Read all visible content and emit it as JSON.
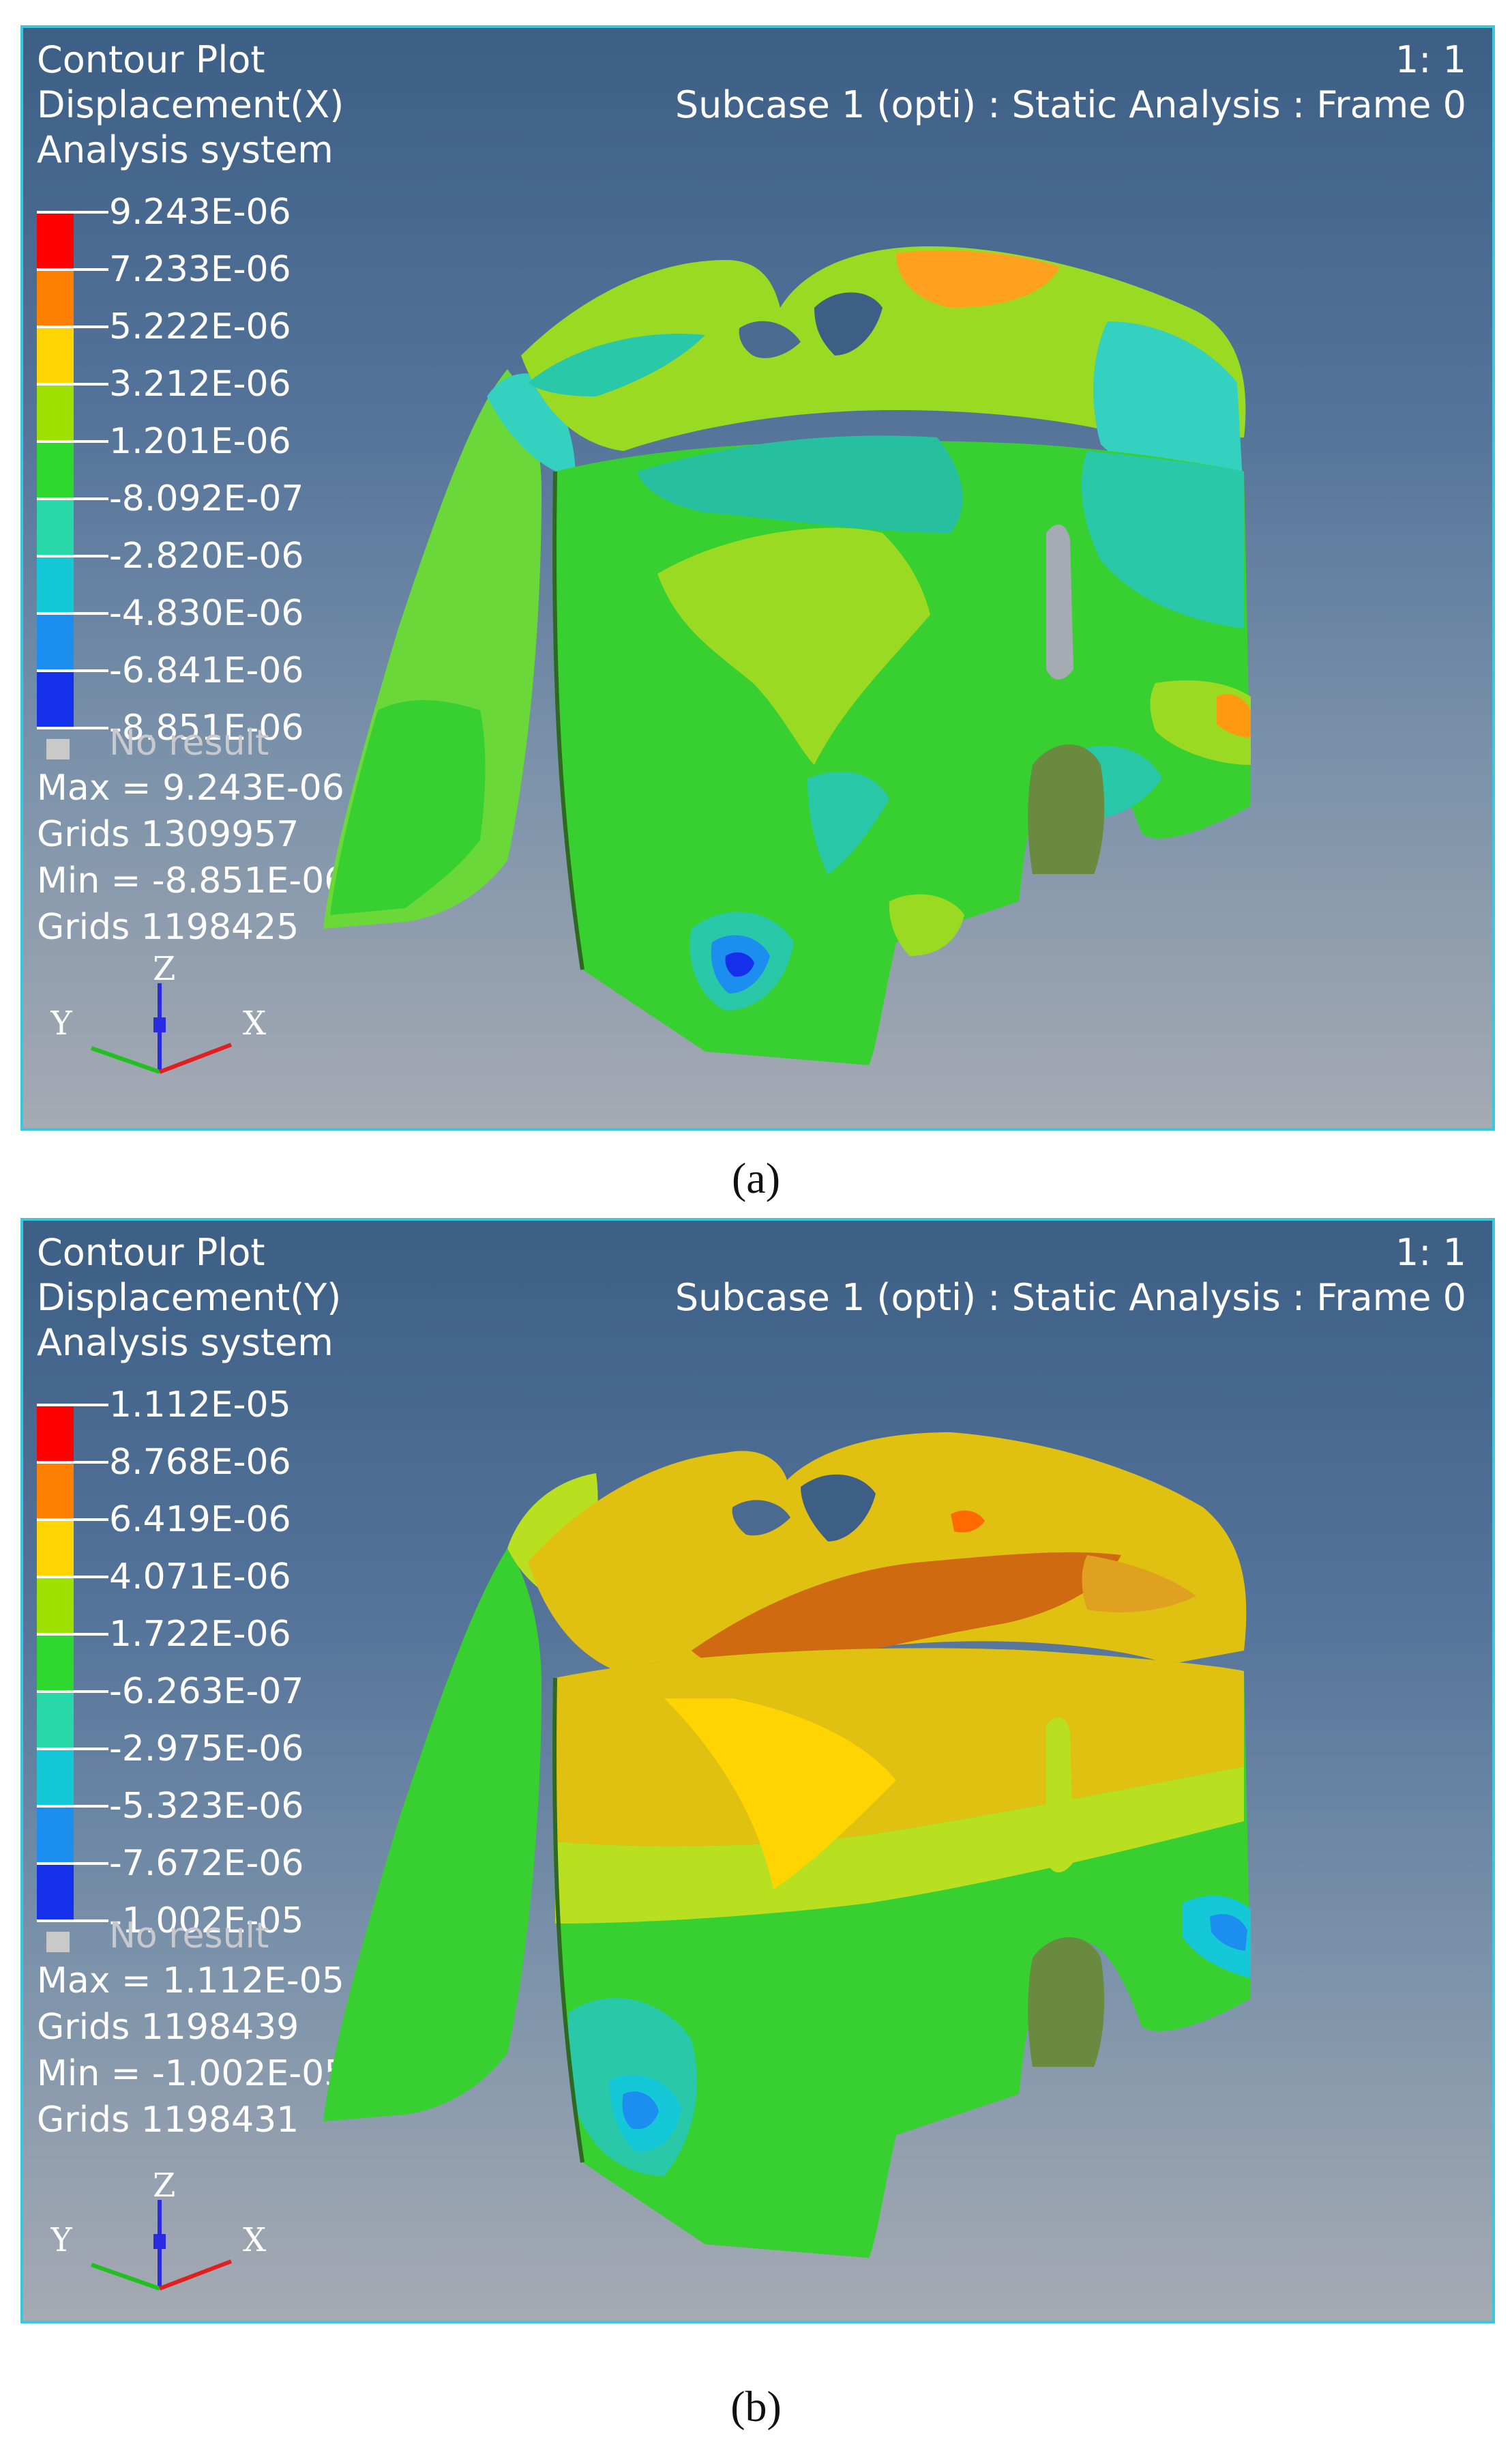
{
  "panels": [
    {
      "caption": "(a)",
      "title_lines": [
        "Contour Plot",
        "Displacement(X)",
        "Analysis system"
      ],
      "scale": "1: 1",
      "subcase": "Subcase 1 (opti) : Static Analysis : Frame 0",
      "legend": {
        "values": [
          "9.243E-06",
          "7.233E-06",
          "5.222E-06",
          "3.212E-06",
          "1.201E-06",
          "-8.092E-07",
          "-2.820E-06",
          "-4.830E-06",
          "-6.841E-06",
          "-8.851E-06"
        ],
        "colors": [
          "#ff0000",
          "#ff7f00",
          "#ffd400",
          "#9ee000",
          "#2fd82f",
          "#28d8a8",
          "#14c8d8",
          "#1c8ef0",
          "#1430ea",
          "#0000a0"
        ],
        "no_result": "No result"
      },
      "stats": [
        "Max = 9.243E-06",
        "Grids 1309957",
        "Min = -8.851E-06",
        "Grids 1198425"
      ],
      "axes": {
        "z": "Z",
        "y": "Y",
        "x": "X"
      }
    },
    {
      "caption": "(b)",
      "title_lines": [
        "Contour Plot",
        "Displacement(Y)",
        "Analysis system"
      ],
      "scale": "1: 1",
      "subcase": "Subcase 1 (opti) : Static Analysis : Frame 0",
      "legend": {
        "values": [
          "1.112E-05",
          "8.768E-06",
          "6.419E-06",
          "4.071E-06",
          "1.722E-06",
          "-6.263E-07",
          "-2.975E-06",
          "-5.323E-06",
          "-7.672E-06",
          "-1.002E-05"
        ],
        "colors": [
          "#ff0000",
          "#ff7f00",
          "#ffd400",
          "#9ee000",
          "#2fd82f",
          "#28d8a8",
          "#14c8d8",
          "#1c8ef0",
          "#1430ea",
          "#0000a0"
        ],
        "no_result": "No result"
      },
      "stats": [
        "Max = 1.112E-05",
        "Grids 1198439",
        "Min = -1.002E-05",
        "Grids 1198431"
      ],
      "axes": {
        "z": "Z",
        "y": "Y",
        "x": "X"
      }
    }
  ]
}
